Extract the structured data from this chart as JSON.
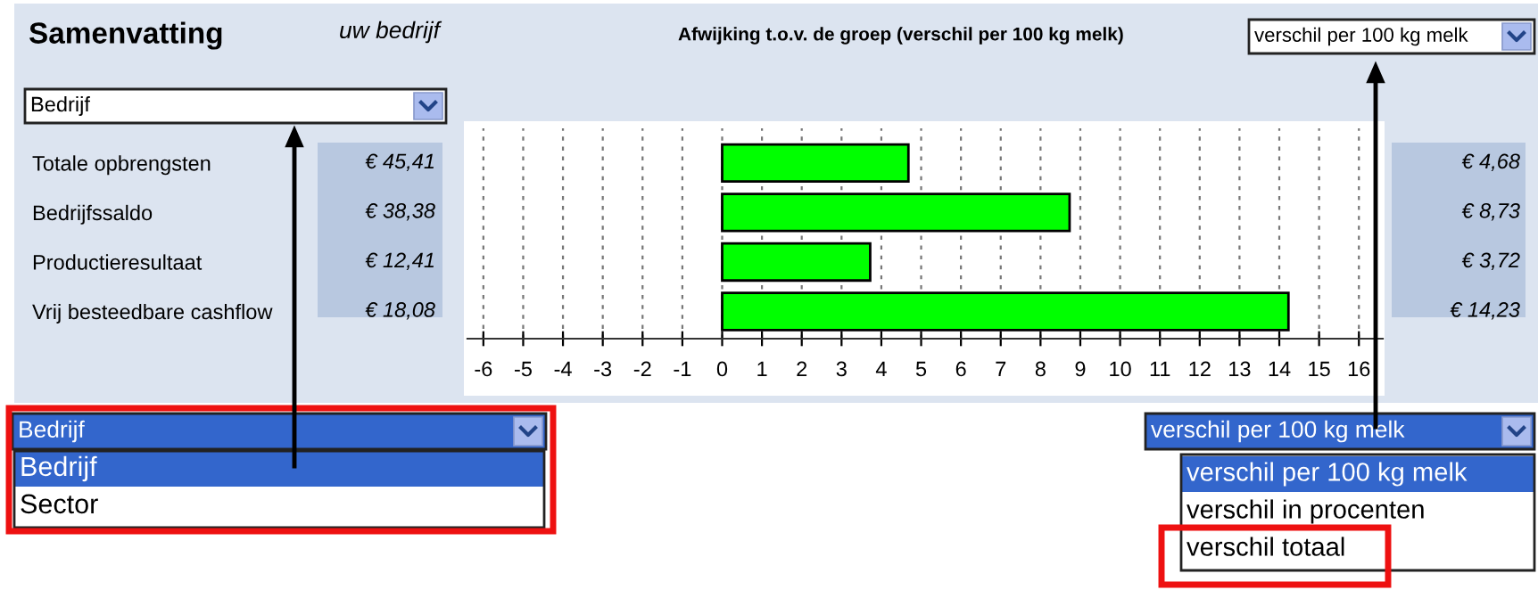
{
  "chart_data": {
    "type": "bar",
    "orientation": "horizontal",
    "title": "Samenvatting",
    "subtitle": "uw bedrijf",
    "categories": [
      "Totale opbrengsten",
      "Bedrijfssaldo",
      "Productieresultaat",
      "Vrij besteedbare cashflow"
    ],
    "values": [
      4.68,
      8.73,
      3.72,
      14.23
    ],
    "color": "#00ff00",
    "value_labels": [
      "€ 4,68",
      "€ 8,73",
      "€ 3,72",
      "€ 14,23"
    ],
    "xlim": [
      -6.4,
      16.6
    ],
    "xticks": [
      -6,
      -5,
      -4,
      -3,
      -2,
      -1,
      0,
      1,
      2,
      3,
      4,
      5,
      6,
      7,
      8,
      9,
      10,
      11,
      12,
      13,
      14,
      15,
      16
    ],
    "grid": "x",
    "annotations": [
      "Afwijking t.o.v. de groep (verschil per 100 kg melk)",
      "Bedrijf",
      "verschil per 100 kg melk",
      "€ 45,41",
      "€ 38,38",
      "€ 12,41",
      "€ 18,08",
      "Bedrijf",
      "Bedrijf",
      "Sector",
      "verschil per 100 kg melk",
      "verschil per 100 kg melk",
      "verschil in procenten",
      "verschil totaal"
    ]
  }
}
